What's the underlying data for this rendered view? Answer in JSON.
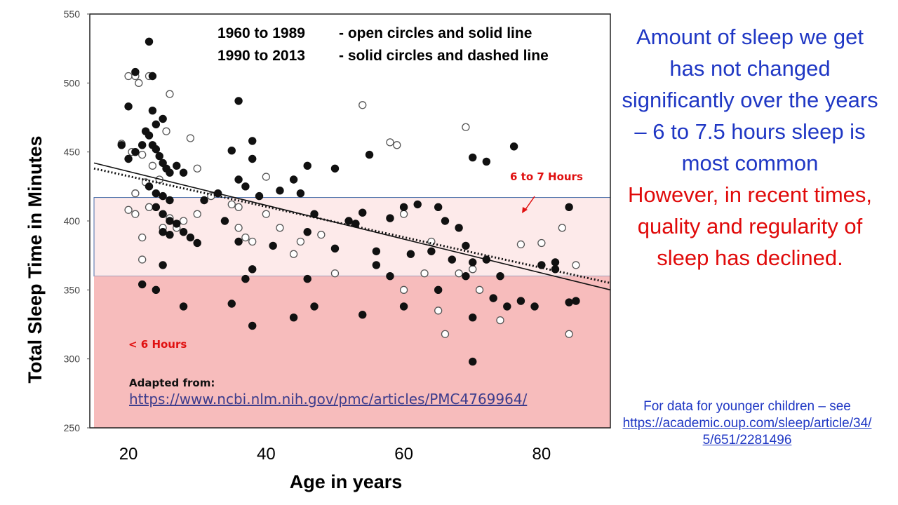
{
  "chart_data": {
    "type": "scatter",
    "xlabel": "Age in years",
    "ylabel": "Total Sleep Time in Minutes",
    "xlim": [
      15,
      90
    ],
    "ylim": [
      250,
      550
    ],
    "xticks": [
      20,
      40,
      60,
      80
    ],
    "yticks": [
      250,
      300,
      350,
      400,
      450,
      500,
      550
    ],
    "legend": {
      "line1_years": "1960 to 1989",
      "line1_desc": "- open circles and solid line",
      "line2_years": "1990 to 2013",
      "line2_desc": "- solid circles and dashed line"
    },
    "bands": [
      {
        "label": "6 to 7 Hours",
        "from": 360,
        "to": 417,
        "color": "#fdeaea"
      },
      {
        "label": "< 6 Hours",
        "from": 250,
        "to": 360,
        "color": "#f7bcbc"
      }
    ],
    "series": [
      {
        "name": "1960 to 1989",
        "marker": "open",
        "trend": {
          "x": [
            15,
            90
          ],
          "y": [
            442,
            350
          ]
        },
        "points": [
          [
            20,
            505
          ],
          [
            21,
            505
          ],
          [
            23,
            505
          ],
          [
            21.5,
            500
          ],
          [
            26,
            492
          ],
          [
            19,
            456
          ],
          [
            20.5,
            450
          ],
          [
            22,
            448
          ],
          [
            23.5,
            440
          ],
          [
            25.5,
            465
          ],
          [
            29,
            460
          ],
          [
            30,
            438
          ],
          [
            24.5,
            430
          ],
          [
            22.5,
            428
          ],
          [
            21,
            420
          ],
          [
            23,
            410
          ],
          [
            20,
            408
          ],
          [
            21,
            405
          ],
          [
            22,
            388
          ],
          [
            22,
            372
          ],
          [
            25,
            395
          ],
          [
            26,
            402
          ],
          [
            27,
            395
          ],
          [
            28,
            400
          ],
          [
            30,
            405
          ],
          [
            32,
            418
          ],
          [
            35,
            412
          ],
          [
            36,
            410
          ],
          [
            36,
            395
          ],
          [
            37,
            388
          ],
          [
            38,
            385
          ],
          [
            40,
            432
          ],
          [
            40,
            405
          ],
          [
            42,
            395
          ],
          [
            44,
            376
          ],
          [
            45,
            385
          ],
          [
            48,
            390
          ],
          [
            50,
            362
          ],
          [
            54,
            484
          ],
          [
            58,
            457
          ],
          [
            59,
            455
          ],
          [
            60,
            405
          ],
          [
            60,
            350
          ],
          [
            63,
            362
          ],
          [
            64,
            385
          ],
          [
            65,
            335
          ],
          [
            66,
            318
          ],
          [
            68,
            362
          ],
          [
            69,
            468
          ],
          [
            70,
            365
          ],
          [
            71,
            350
          ],
          [
            74,
            328
          ],
          [
            77,
            383
          ],
          [
            80,
            384
          ],
          [
            83,
            395
          ],
          [
            84,
            318
          ],
          [
            85,
            368
          ]
        ]
      },
      {
        "name": "1990 to 2013",
        "marker": "solid",
        "trend": {
          "x": [
            15,
            90
          ],
          "y": [
            438,
            355
          ]
        },
        "points": [
          [
            23,
            530
          ],
          [
            21,
            508
          ],
          [
            23.5,
            505
          ],
          [
            20,
            483
          ],
          [
            23.5,
            480
          ],
          [
            24,
            470
          ],
          [
            25,
            474
          ],
          [
            19,
            455
          ],
          [
            20,
            445
          ],
          [
            21,
            450
          ],
          [
            22,
            455
          ],
          [
            22.5,
            465
          ],
          [
            23,
            462
          ],
          [
            23.5,
            455
          ],
          [
            24,
            452
          ],
          [
            24.5,
            447
          ],
          [
            25,
            442
          ],
          [
            25.5,
            438
          ],
          [
            26,
            435
          ],
          [
            23,
            425
          ],
          [
            24,
            420
          ],
          [
            25,
            418
          ],
          [
            26,
            415
          ],
          [
            24,
            410
          ],
          [
            25,
            405
          ],
          [
            26,
            400
          ],
          [
            27,
            398
          ],
          [
            25,
            392
          ],
          [
            26,
            390
          ],
          [
            28,
            392
          ],
          [
            29,
            388
          ],
          [
            30,
            384
          ],
          [
            27,
            440
          ],
          [
            28,
            435
          ],
          [
            31,
            415
          ],
          [
            33,
            420
          ],
          [
            35,
            451
          ],
          [
            36,
            487
          ],
          [
            38,
            458
          ],
          [
            38,
            445
          ],
          [
            36,
            430
          ],
          [
            37,
            425
          ],
          [
            39,
            418
          ],
          [
            42,
            422
          ],
          [
            44,
            430
          ],
          [
            45,
            420
          ],
          [
            46,
            440
          ],
          [
            47,
            405
          ],
          [
            50,
            438
          ],
          [
            52,
            400
          ],
          [
            54,
            406
          ],
          [
            55,
            448
          ],
          [
            58,
            402
          ],
          [
            60,
            410
          ],
          [
            62,
            412
          ],
          [
            65,
            410
          ],
          [
            66,
            400
          ],
          [
            68,
            395
          ],
          [
            70,
            446
          ],
          [
            72,
            443
          ],
          [
            76,
            454
          ],
          [
            80,
            368
          ],
          [
            82,
            365
          ],
          [
            84,
            410
          ],
          [
            34,
            400
          ],
          [
            36,
            385
          ],
          [
            38,
            365
          ],
          [
            41,
            382
          ],
          [
            46,
            392
          ],
          [
            50,
            380
          ],
          [
            53,
            398
          ],
          [
            56,
            378
          ],
          [
            58,
            360
          ],
          [
            61,
            376
          ],
          [
            64,
            378
          ],
          [
            67,
            372
          ],
          [
            69,
            382
          ],
          [
            70,
            370
          ],
          [
            72,
            372
          ],
          [
            74,
            360
          ],
          [
            25,
            368
          ],
          [
            22,
            354
          ],
          [
            24,
            350
          ],
          [
            28,
            338
          ],
          [
            35,
            340
          ],
          [
            37,
            358
          ],
          [
            38,
            324
          ],
          [
            44,
            330
          ],
          [
            46,
            358
          ],
          [
            47,
            338
          ],
          [
            54,
            332
          ],
          [
            56,
            368
          ],
          [
            60,
            338
          ],
          [
            65,
            350
          ],
          [
            69,
            360
          ],
          [
            70,
            330
          ],
          [
            70,
            298
          ],
          [
            73,
            344
          ],
          [
            75,
            338
          ],
          [
            77,
            342
          ],
          [
            79,
            338
          ],
          [
            82,
            370
          ],
          [
            84,
            341
          ],
          [
            85,
            342
          ]
        ]
      }
    ]
  },
  "annotations": {
    "band_high": "6 to 7 Hours",
    "band_low": "< 6 Hours"
  },
  "side_panel": {
    "main_statement": "Amount of sleep we get has not changed significantly over the years – 6 to 7.5 hours sleep is most common",
    "caveat": "However, in recent times, quality and regularity of sleep has declined."
  },
  "attribution": {
    "title": "Adapted from:",
    "url": "https://www.ncbi.nlm.nih.gov/pmc/articles/PMC4769964/"
  },
  "younger_children": {
    "text": "For data for younger children – see",
    "url": "https://academic.oup.com/sleep/article/34/5/651/2281496"
  },
  "colors": {
    "side_blue": "#1f37c4",
    "side_red": "#e00a0a",
    "band_label": "#e01010"
  }
}
